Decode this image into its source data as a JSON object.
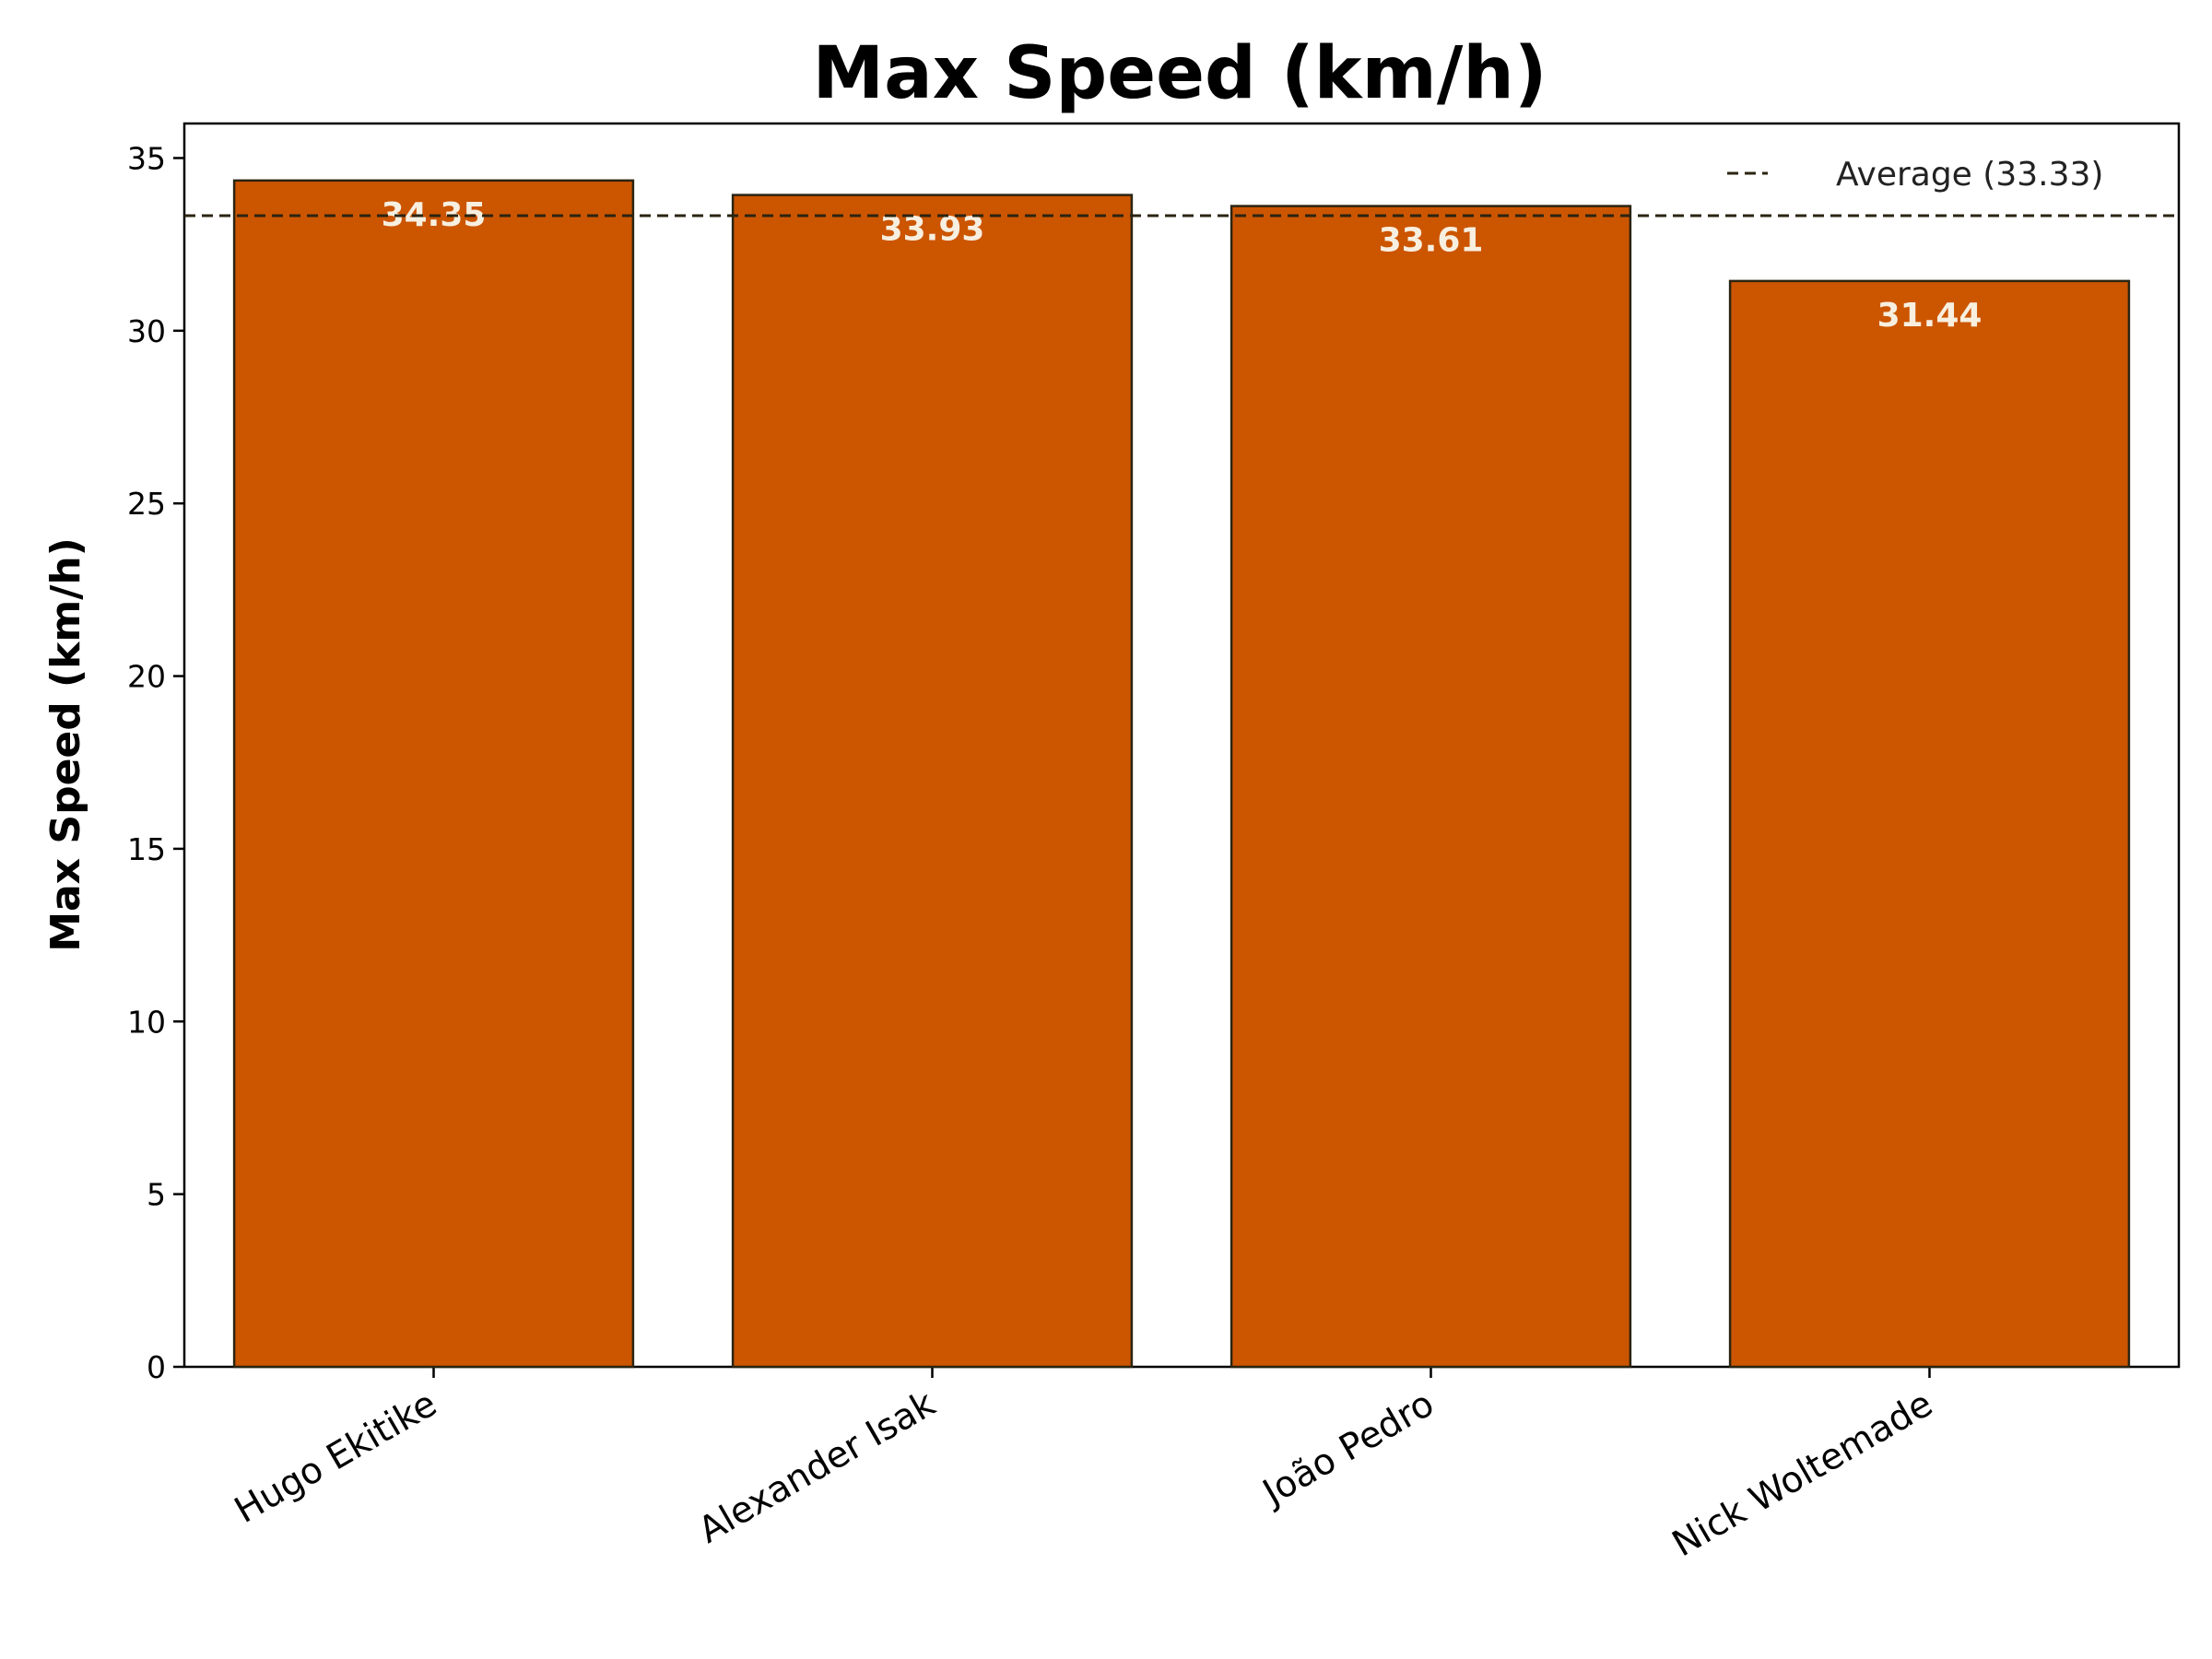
{
  "chart_data": {
    "type": "bar",
    "title": "Max Speed (km/h)",
    "xlabel": "",
    "ylabel": "Max Speed (km/h)",
    "categories": [
      "Hugo Ekitike",
      "Alexander Isak",
      "João Pedro",
      "Nick Woltemade"
    ],
    "values": [
      34.35,
      33.93,
      33.61,
      31.44
    ],
    "value_labels": [
      "34.35",
      "33.93",
      "33.61",
      "31.44"
    ],
    "ylim": [
      0,
      36
    ],
    "yticks": [
      0,
      5,
      10,
      15,
      20,
      25,
      30,
      35
    ],
    "reference_line": {
      "value": 33.33,
      "label": "Average (33.33)",
      "style": "dashed"
    },
    "legend_position": "top-right",
    "grid": false,
    "colors": {
      "bar": "#cc5500",
      "bar_edge": "#2b2412",
      "bar_label": "#f7efe0",
      "average_line": "#2b2412"
    }
  }
}
